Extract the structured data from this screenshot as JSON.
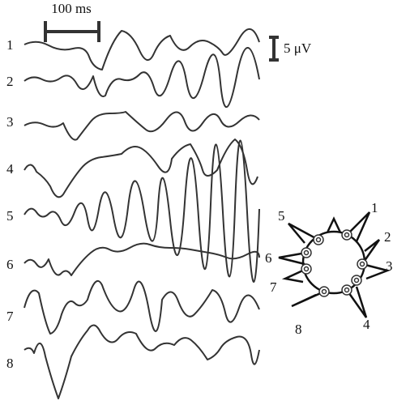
{
  "scale_bar": {
    "time": "100 ms",
    "voltage": "5 μV"
  },
  "traces": {
    "labels": [
      "1",
      "2",
      "3",
      "4",
      "5",
      "6",
      "7",
      "8"
    ]
  },
  "electrode_map": {
    "labels": [
      "1",
      "2",
      "3",
      "4",
      "5",
      "6",
      "7",
      "8"
    ]
  }
}
